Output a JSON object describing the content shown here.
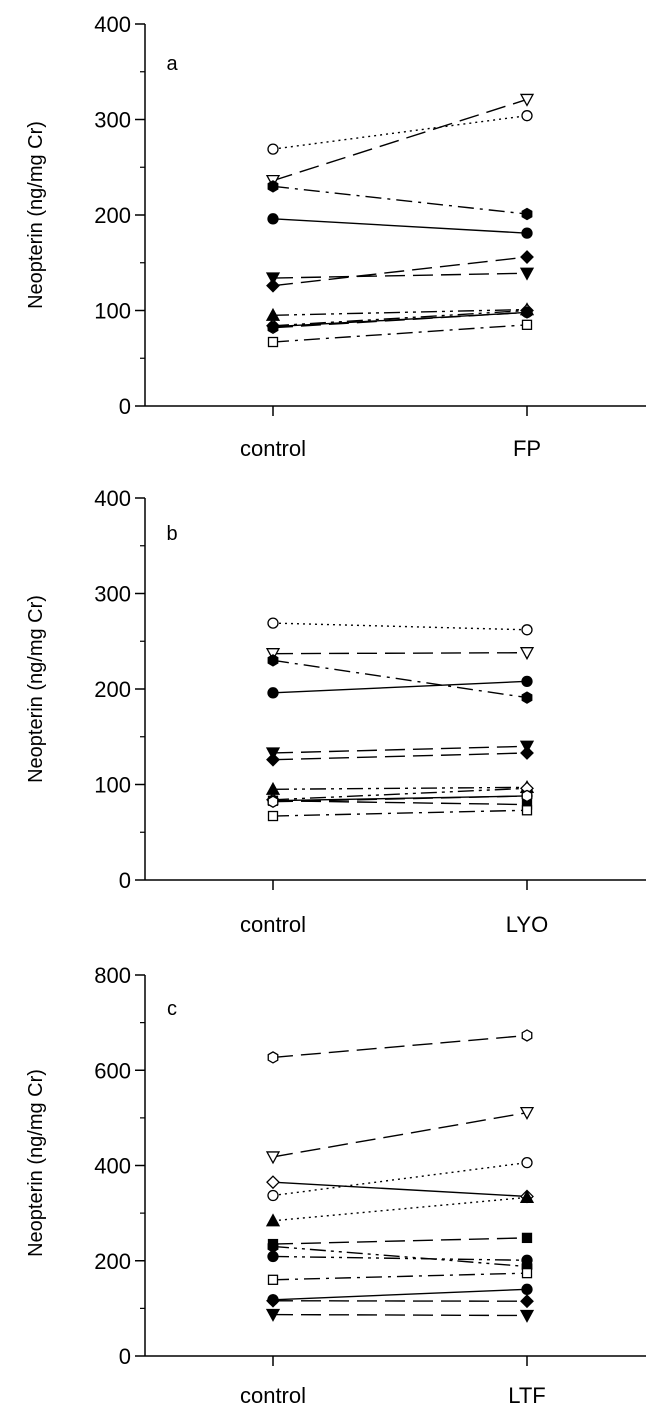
{
  "chart_data": [
    {
      "type": "line",
      "panel": "a",
      "ylabel": "Neopterin (ng/mg Cr)",
      "categories": [
        "control",
        "FP"
      ],
      "ylim": [
        0,
        400
      ],
      "yticks": [
        0,
        100,
        200,
        300,
        400
      ],
      "series": [
        {
          "marker": "circle-open",
          "line": "dotted",
          "values": [
            269,
            304
          ]
        },
        {
          "marker": "triangle-down-open",
          "line": "long-dash",
          "values": [
            236,
            321
          ]
        },
        {
          "marker": "hexagon-filled",
          "line": "dash-dot",
          "values": [
            230,
            201
          ]
        },
        {
          "marker": "circle-filled",
          "line": "solid",
          "values": [
            196,
            181
          ]
        },
        {
          "marker": "diamond-filled",
          "line": "long-dash",
          "values": [
            126,
            156
          ]
        },
        {
          "marker": "triangle-down-filled",
          "line": "long-dash",
          "values": [
            134,
            139
          ]
        },
        {
          "marker": "triangle-up-filled",
          "line": "dash-dot-dot",
          "values": [
            95,
            101
          ]
        },
        {
          "marker": "diamond-open",
          "line": "dash-dot-dot",
          "values": [
            84,
            100
          ]
        },
        {
          "marker": "hexagon-open",
          "line": "long-dash",
          "values": [
            82,
            98
          ]
        },
        {
          "marker": "circle-filled",
          "line": "solid",
          "values": [
            83,
            98
          ]
        },
        {
          "marker": "square-open",
          "line": "dash-dot",
          "values": [
            67,
            85
          ]
        }
      ]
    },
    {
      "type": "line",
      "panel": "b",
      "ylabel": "Neopterin (ng/mg Cr)",
      "categories": [
        "control",
        "LYO"
      ],
      "ylim": [
        0,
        400
      ],
      "yticks": [
        0,
        100,
        200,
        300,
        400
      ],
      "series": [
        {
          "marker": "circle-open",
          "line": "dotted",
          "values": [
            269,
            262
          ]
        },
        {
          "marker": "triangle-down-open",
          "line": "long-dash",
          "values": [
            237,
            238
          ]
        },
        {
          "marker": "hexagon-filled",
          "line": "dash-dot",
          "values": [
            230,
            191
          ]
        },
        {
          "marker": "circle-filled",
          "line": "solid",
          "values": [
            196,
            208
          ]
        },
        {
          "marker": "triangle-down-filled",
          "line": "long-dash",
          "values": [
            133,
            140
          ]
        },
        {
          "marker": "diamond-filled",
          "line": "long-dash",
          "values": [
            126,
            133
          ]
        },
        {
          "marker": "triangle-up-filled",
          "line": "dash-dot-dot",
          "values": [
            95,
            97
          ]
        },
        {
          "marker": "diamond-open",
          "line": "dash-dot-dot",
          "values": [
            84,
            96
          ]
        },
        {
          "marker": "circle-filled",
          "line": "solid",
          "values": [
            83,
            88
          ]
        },
        {
          "marker": "square-filled",
          "line": "long-dash",
          "values": [
            83,
            79
          ]
        },
        {
          "marker": "hexagon-open",
          "line": "long-dash",
          "values": [
            82,
            88
          ]
        },
        {
          "marker": "square-open",
          "line": "dash-dot",
          "values": [
            67,
            73
          ]
        }
      ]
    },
    {
      "type": "line",
      "panel": "c",
      "ylabel": "Neopterin (ng/mg Cr)",
      "categories": [
        "control",
        "LTF"
      ],
      "ylim": [
        0,
        800
      ],
      "yticks": [
        0,
        200,
        400,
        600,
        800
      ],
      "series": [
        {
          "marker": "hexagon-open",
          "line": "long-dash",
          "values": [
            627,
            673
          ]
        },
        {
          "marker": "triangle-down-open",
          "line": "long-dash",
          "values": [
            418,
            511
          ]
        },
        {
          "marker": "circle-open",
          "line": "dotted",
          "values": [
            337,
            406
          ]
        },
        {
          "marker": "diamond-open",
          "line": "solid",
          "values": [
            365,
            335
          ]
        },
        {
          "marker": "triangle-up-filled",
          "line": "dotted",
          "values": [
            284,
            333
          ]
        },
        {
          "marker": "square-filled",
          "line": "long-dash",
          "values": [
            235,
            248
          ]
        },
        {
          "marker": "hexagon-filled",
          "line": "dash-dot-dot",
          "values": [
            230,
            188
          ]
        },
        {
          "marker": "circle-filled",
          "line": "dash-dot-dot",
          "values": [
            209,
            201
          ]
        },
        {
          "marker": "square-open",
          "line": "dash-dot",
          "values": [
            160,
            174
          ]
        },
        {
          "marker": "circle-filled",
          "line": "solid",
          "values": [
            118,
            140
          ]
        },
        {
          "marker": "diamond-filled",
          "line": "long-dash",
          "values": [
            116,
            115
          ]
        },
        {
          "marker": "triangle-down-filled",
          "line": "long-dash",
          "values": [
            87,
            85
          ]
        }
      ]
    }
  ]
}
